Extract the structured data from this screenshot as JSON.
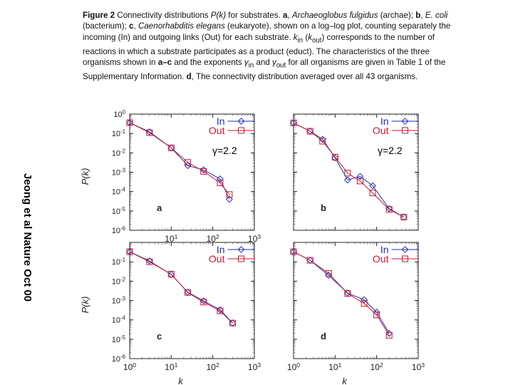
{
  "caption": {
    "fig": "Figure 2",
    "t1": " Connectivity distributions ",
    "pk": "P(k)",
    "t2": " for substrates. ",
    "a": "a",
    "t3": ", ",
    "archaeo": "Archaeoglobus fulgidus",
    "t4": " (archae); ",
    "b": "b",
    "t5": ", ",
    "ecoli": "E. coli",
    "t6": " (bacterium); ",
    "c": "c",
    "t7": ", ",
    "celegans": "Caenorhabditis elegans",
    "t8": " (eukaryote), shown on a log–log plot, counting separately the incoming (In) and outgoing links (Out) for each substrate. ",
    "kin": "k",
    "kin_sub": "in",
    "t9": " (",
    "kout": "k",
    "kout_sub": "out",
    "t10": ") corresponds to the number of reactions in which a substrate participates as a product (educt). The characteristics of the three organisms shown in ",
    "ac": "a–c",
    "t11": " and the exponents ",
    "gin": "γ",
    "gin_sub": "in",
    "t12": " and ",
    "gout": "γ",
    "gout_sub": "out",
    "t13": " for all organisms are given in Table 1 of the Supplementary Information. ",
    "d": "d",
    "t14": ", The connectivity distribution averaged over all 43 organisms."
  },
  "side_label": "Jeong et al Nature Oct 00",
  "gamma_left": "γ=2.2",
  "gamma_right": "γ=2.2",
  "colors": {
    "in": "#1f2fb5",
    "out": "#c8182e"
  },
  "chart_data": [
    {
      "panel": "a",
      "type": "line",
      "log_x": true,
      "log_y": true,
      "xlim": [
        1,
        1000
      ],
      "ylim": [
        1e-06,
        1
      ],
      "xticks": [
        "10^1",
        "10^2",
        "10^3"
      ],
      "yticks": [
        "10^0",
        "10^-1",
        "10^-2",
        "10^-3",
        "10^-4",
        "10^-5",
        "10^-6"
      ],
      "ylabel": "P(k)",
      "series": [
        {
          "name": "In",
          "color": "#1f2fb5",
          "marker": "diamond",
          "x": [
            1,
            3,
            10,
            25,
            60,
            150,
            250
          ],
          "y": [
            0.36,
            0.12,
            0.018,
            0.0022,
            0.0013,
            0.00045,
            4e-05
          ]
        },
        {
          "name": "Out",
          "color": "#c8182e",
          "marker": "square",
          "x": [
            1,
            3,
            10,
            25,
            60,
            150,
            250
          ],
          "y": [
            0.36,
            0.11,
            0.018,
            0.0032,
            0.0011,
            0.00028,
            7e-05
          ]
        }
      ]
    },
    {
      "panel": "b",
      "type": "line",
      "log_x": true,
      "log_y": true,
      "xlim": [
        1,
        1000
      ],
      "ylim": [
        1e-06,
        1
      ],
      "xticks": [],
      "yticks": [],
      "series": [
        {
          "name": "In",
          "color": "#1f2fb5",
          "marker": "diamond",
          "x": [
            1,
            2.5,
            5,
            10,
            20,
            40,
            80,
            200,
            450
          ],
          "y": [
            0.35,
            0.13,
            0.05,
            0.0055,
            0.0004,
            0.0006,
            0.0002,
            1.3e-05,
            4.8e-06
          ]
        },
        {
          "name": "Out",
          "color": "#c8182e",
          "marker": "square",
          "x": [
            1,
            2.5,
            5,
            10,
            20,
            40,
            80,
            200,
            450
          ],
          "y": [
            0.35,
            0.13,
            0.04,
            0.006,
            0.0009,
            0.00035,
            8.5e-05,
            1.2e-05,
            4.8e-06
          ]
        }
      ]
    },
    {
      "panel": "c",
      "type": "line",
      "log_x": true,
      "log_y": true,
      "xlim": [
        1,
        1000
      ],
      "ylim": [
        1e-06,
        1
      ],
      "xticks": [
        "10^1",
        "10^2",
        "10^3",
        "10^0"
      ],
      "yticks": [
        "10^-1",
        "10^-2",
        "10^-3",
        "10^-4",
        "10^-5",
        "10^-6"
      ],
      "ylabel": "P(k)",
      "xlabel": "k",
      "series": [
        {
          "name": "In",
          "color": "#1f2fb5",
          "marker": "diamond",
          "x": [
            1,
            3,
            10,
            25,
            60,
            150,
            300
          ],
          "y": [
            0.33,
            0.11,
            0.022,
            0.0027,
            0.00095,
            0.00033,
            6.9e-05
          ]
        },
        {
          "name": "Out",
          "color": "#c8182e",
          "marker": "square",
          "x": [
            1,
            3,
            10,
            25,
            60,
            150,
            300
          ],
          "y": [
            0.33,
            0.1,
            0.023,
            0.0026,
            0.00083,
            0.00029,
            6.8e-05
          ]
        }
      ]
    },
    {
      "panel": "d",
      "type": "line",
      "log_x": true,
      "log_y": true,
      "xlim": [
        1,
        1000
      ],
      "ylim": [
        1e-06,
        1
      ],
      "xticks": [
        "10^0",
        "10^1",
        "10^2",
        "10^3"
      ],
      "yticks": [],
      "xlabel": "k",
      "series": [
        {
          "name": "In",
          "color": "#1f2fb5",
          "marker": "diamond",
          "x": [
            1,
            2.5,
            7,
            20,
            50,
            100,
            200
          ],
          "y": [
            0.33,
            0.12,
            0.02,
            0.0024,
            0.0011,
            0.00025,
            2e-05
          ]
        },
        {
          "name": "Out",
          "color": "#c8182e",
          "marker": "square",
          "x": [
            1,
            2.5,
            7,
            20,
            50,
            100,
            200
          ],
          "y": [
            0.33,
            0.12,
            0.025,
            0.0023,
            0.0007,
            0.00018,
            1.6e-05
          ]
        }
      ]
    }
  ]
}
